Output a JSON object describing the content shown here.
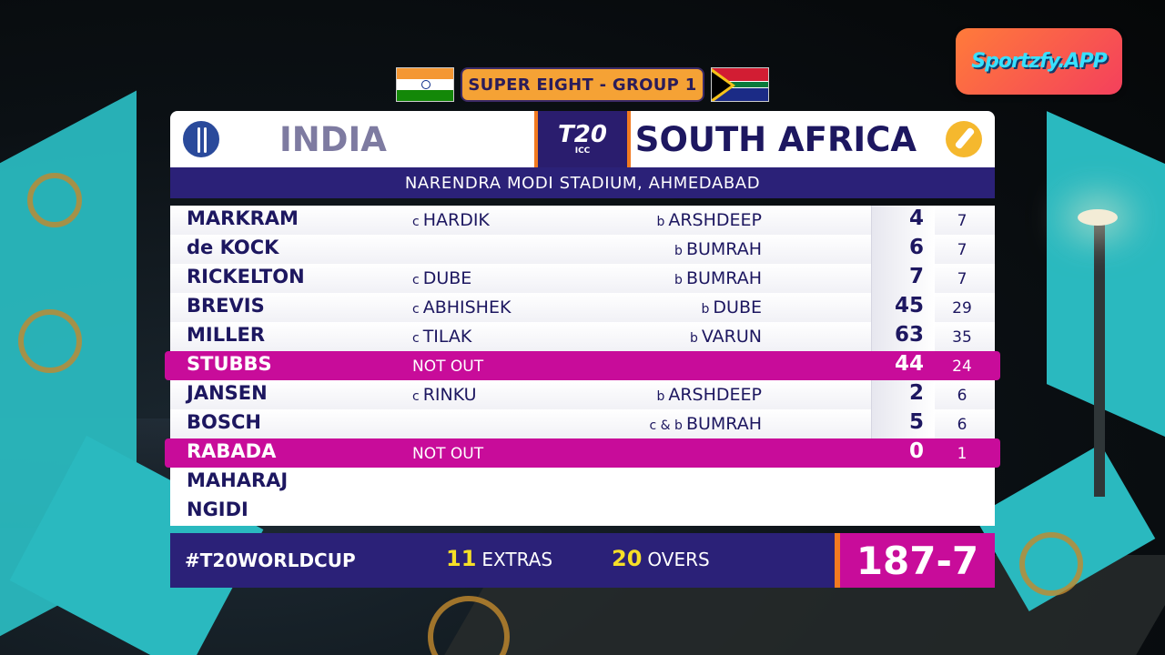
{
  "logo": {
    "text": "Sportzfy.APP"
  },
  "stage": {
    "label": "SUPER EIGHT - GROUP 1"
  },
  "teams": {
    "left": "INDIA",
    "right": "SOUTH AFRICA"
  },
  "tournament_logo": {
    "main": "T20",
    "sub": "ICC"
  },
  "venue": "NARENDRA MODI STADIUM, AHMEDABAD",
  "batting": [
    {
      "name": "MARKRAM",
      "catch_prefix": "c",
      "catcher": "HARDIK",
      "bowl_prefix": "b",
      "bowler": "ARSHDEEP",
      "runs": "4",
      "balls": "7"
    },
    {
      "name": "de KOCK",
      "catch_prefix": "",
      "catcher": "",
      "bowl_prefix": "b",
      "bowler": "BUMRAH",
      "runs": "6",
      "balls": "7"
    },
    {
      "name": "RICKELTON",
      "catch_prefix": "c",
      "catcher": "DUBE",
      "bowl_prefix": "b",
      "bowler": "BUMRAH",
      "runs": "7",
      "balls": "7"
    },
    {
      "name": "BREVIS",
      "catch_prefix": "c",
      "catcher": "ABHISHEK",
      "bowl_prefix": "b",
      "bowler": "DUBE",
      "runs": "45",
      "balls": "29"
    },
    {
      "name": "MILLER",
      "catch_prefix": "c",
      "catcher": "TILAK",
      "bowl_prefix": "b",
      "bowler": "VARUN",
      "runs": "63",
      "balls": "35"
    },
    {
      "name": "STUBBS",
      "status": "NOT OUT",
      "runs": "44",
      "balls": "24"
    },
    {
      "name": "JANSEN",
      "catch_prefix": "c",
      "catcher": "RINKU",
      "bowl_prefix": "b",
      "bowler": "ARSHDEEP",
      "runs": "2",
      "balls": "6"
    },
    {
      "name": "BOSCH",
      "catch_prefix": "",
      "catcher": "",
      "bowl_prefix": "c & b",
      "bowler": "BUMRAH",
      "runs": "5",
      "balls": "6"
    },
    {
      "name": "RABADA",
      "status": "NOT OUT",
      "runs": "0",
      "balls": "1"
    },
    {
      "name": "MAHARAJ"
    },
    {
      "name": "NGIDI"
    }
  ],
  "footer": {
    "hashtag": "#T20WORLDCUP",
    "extras_value": "11",
    "extras_label": "EXTRAS",
    "overs_value": "20",
    "overs_label": "OVERS",
    "total": "187-7"
  },
  "colors": {
    "navy": "#2b2178",
    "magenta": "#c80c9a",
    "orange": "#f5a235",
    "teal": "#2ab9bf"
  },
  "icons": {
    "left_team": "cricket-ball-icon",
    "right_team": "cricket-bat-icon"
  }
}
